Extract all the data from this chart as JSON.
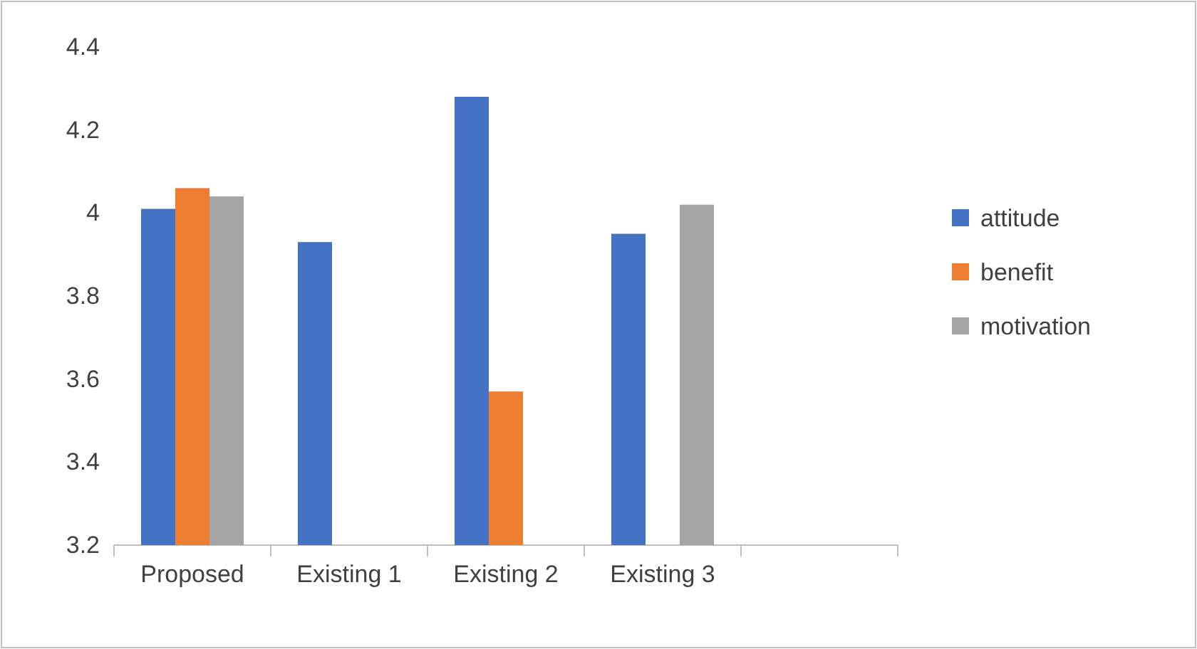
{
  "chart_data": {
    "type": "bar",
    "categories": [
      "Proposed",
      "Existing 1",
      "Existing 2",
      "Existing 3",
      null
    ],
    "series": [
      {
        "name": "attitude",
        "color": "#4472c4",
        "values": [
          4.01,
          3.93,
          4.28,
          3.95,
          null
        ]
      },
      {
        "name": "benefit",
        "color": "#ed7d31",
        "values": [
          4.06,
          null,
          3.57,
          null,
          null
        ]
      },
      {
        "name": "motivation",
        "color": "#a5a5a5",
        "values": [
          4.04,
          null,
          null,
          4.02,
          null
        ]
      }
    ],
    "ylim": [
      3.2,
      4.4
    ],
    "yticks": [
      3.2,
      3.4,
      3.6,
      3.8,
      4,
      4.2,
      4.4
    ],
    "grid": false,
    "legend": "right"
  }
}
